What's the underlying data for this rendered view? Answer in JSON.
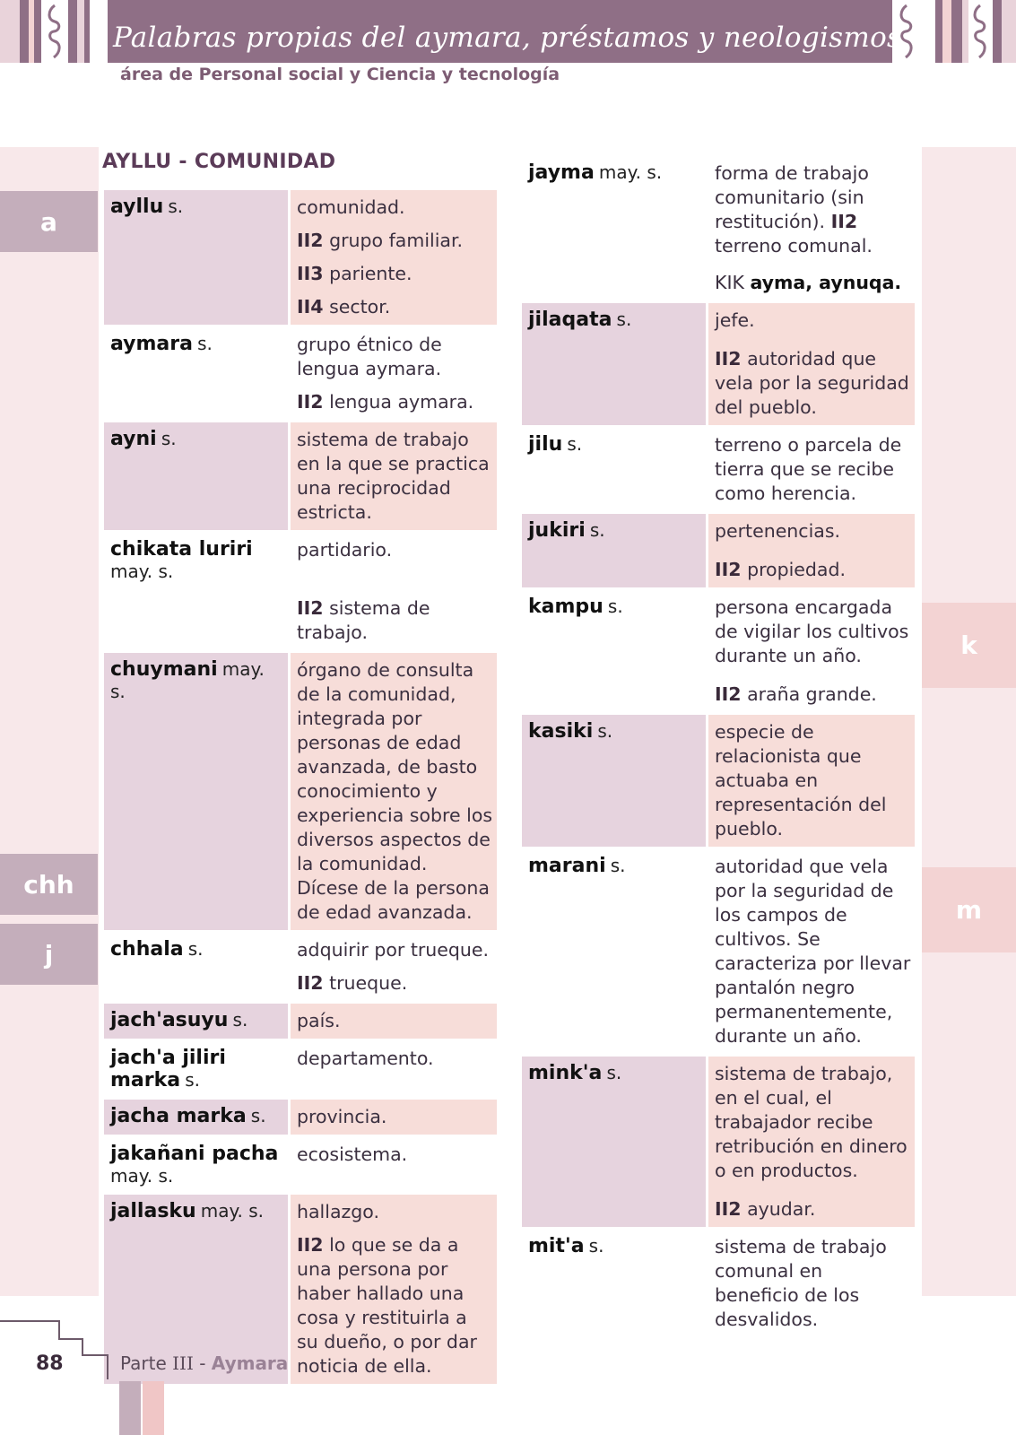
{
  "header": {
    "title": "Palabras propias del aymara, préstamos y neologismos",
    "subtitle": "área de Personal social y Ciencia y tecnología"
  },
  "section_title": "AYLLU - COMUNIDAD",
  "letter_tabs": {
    "a": "a",
    "chh": "chh",
    "j": "j",
    "k": "k",
    "m": "m"
  },
  "left_entries": [
    {
      "term": "ayllu",
      "gram": "s.",
      "defs": [
        {
          "mark": "",
          "text": "comunidad."
        },
        {
          "mark": "II2",
          "text": "grupo familiar."
        },
        {
          "mark": "II3",
          "text": "pariente."
        },
        {
          "mark": "II4",
          "text": "sector."
        }
      ]
    },
    {
      "term": "aymara",
      "gram": "s.",
      "defs": [
        {
          "mark": "",
          "text": "grupo étnico de lengua aymara."
        },
        {
          "mark": "II2",
          "text": "lengua aymara."
        }
      ]
    },
    {
      "term": "ayni",
      "gram": "s.",
      "defs": [
        {
          "mark": "",
          "text": "sistema de trabajo en la que se practica una reciprocidad estricta."
        }
      ]
    },
    {
      "term": "chikata luriri",
      "gram": "may. s.",
      "defs": [
        {
          "mark": "",
          "text": "partidario."
        },
        {
          "mark": "II2",
          "text": "sistema de trabajo."
        }
      ]
    },
    {
      "term": "chuymani",
      "gram": "may. s.",
      "defs": [
        {
          "mark": "",
          "text": "órgano de consulta de la comunidad, integrada por personas de edad avanzada, de basto conocimiento y experiencia sobre los diversos aspectos de la comunidad. Dícese de la persona de edad avanzada."
        }
      ]
    },
    {
      "term": "chhala",
      "gram": "s.",
      "defs": [
        {
          "mark": "",
          "text": "adquirir por trueque."
        },
        {
          "mark": "II2",
          "text": "trueque."
        }
      ]
    },
    {
      "term": "jach'asuyu",
      "gram": "s.",
      "defs": [
        {
          "mark": "",
          "text": "país."
        }
      ]
    },
    {
      "term": "jach'a jiliri marka",
      "gram": "s.",
      "defs": [
        {
          "mark": "",
          "text": "departamento."
        }
      ]
    },
    {
      "term": "jacha marka",
      "gram": "s.",
      "defs": [
        {
          "mark": "",
          "text": "provincia."
        }
      ]
    },
    {
      "term": "jakañani pacha",
      "gram": "may. s.",
      "defs": [
        {
          "mark": "",
          "text": "ecosistema."
        }
      ]
    },
    {
      "term": "jallasku",
      "gram": "may. s.",
      "defs": [
        {
          "mark": "",
          "text": "hallazgo."
        },
        {
          "mark": "II2",
          "text": "lo que se da a una persona por haber hallado una cosa y restituirla a su dueño, o por dar noticia de ella."
        }
      ]
    }
  ],
  "right_entries": [
    {
      "term": "jayma",
      "gram": "may. s.",
      "defs": [
        {
          "mark": "",
          "text": "forma de trabajo comunitario (sin restitución)."
        },
        {
          "mark": "KIK",
          "text": "ayma, aynuqa."
        }
      ]
    },
    {
      "term": "jilaqata",
      "gram": "s.",
      "defs": [
        {
          "mark": "",
          "text": "jefe."
        },
        {
          "mark": "II2",
          "text": "autoridad que vela por la seguridad del pueblo."
        }
      ]
    },
    {
      "term": "jilu",
      "gram": "s.",
      "defs": [
        {
          "mark": "",
          "text": "terreno o parcela de tierra que se recibe como herencia."
        }
      ]
    },
    {
      "term": "jukiri",
      "gram": "s.",
      "defs": [
        {
          "mark": "",
          "text": "pertenencias."
        },
        {
          "mark": "II2",
          "text": "propiedad."
        }
      ]
    },
    {
      "term": "kampu",
      "gram": "s.",
      "defs": [
        {
          "mark": "",
          "text": "persona encargada de vigilar los cultivos durante un año."
        },
        {
          "mark": "II2",
          "text": "araña grande."
        }
      ]
    },
    {
      "term": "kasiki",
      "gram": "s.",
      "defs": [
        {
          "mark": "",
          "text": "especie de relacionista que actuaba en representación del pueblo."
        }
      ]
    },
    {
      "term": "marani",
      "gram": "s.",
      "defs": [
        {
          "mark": "",
          "text": "autoridad que vela por la seguridad de los campos de cultivos. Se caracteriza por llevar pantalón negro permanentemente, durante un año."
        }
      ]
    },
    {
      "term": "mink'a",
      "gram": "s.",
      "defs": [
        {
          "mark": "",
          "text": "sistema de trabajo, en el cual, el trabajador recibe retribución en dinero o en productos."
        },
        {
          "mark": "II2",
          "text": "ayudar."
        }
      ]
    },
    {
      "term": "mit'a",
      "gram": "s.",
      "defs": [
        {
          "mark": "",
          "text": "sistema de trabajo comunal en beneficio de los desvalidos."
        }
      ]
    }
  ],
  "jayma_extra": {
    "mark": "II2",
    "text": "terreno comunal."
  },
  "footer": {
    "page_number": "88",
    "part_prefix": "Parte",
    "part_roman": "III",
    "part_sep": "-",
    "part_language": "Aymara"
  },
  "colors": {
    "header": "#8f6f86",
    "term_cell": "#e6d3de",
    "def_cell": "#f7ddd9",
    "side_strip": "#f8e8ea",
    "left_tab": "#c4aebb",
    "right_tab": "#f3d3d3"
  }
}
